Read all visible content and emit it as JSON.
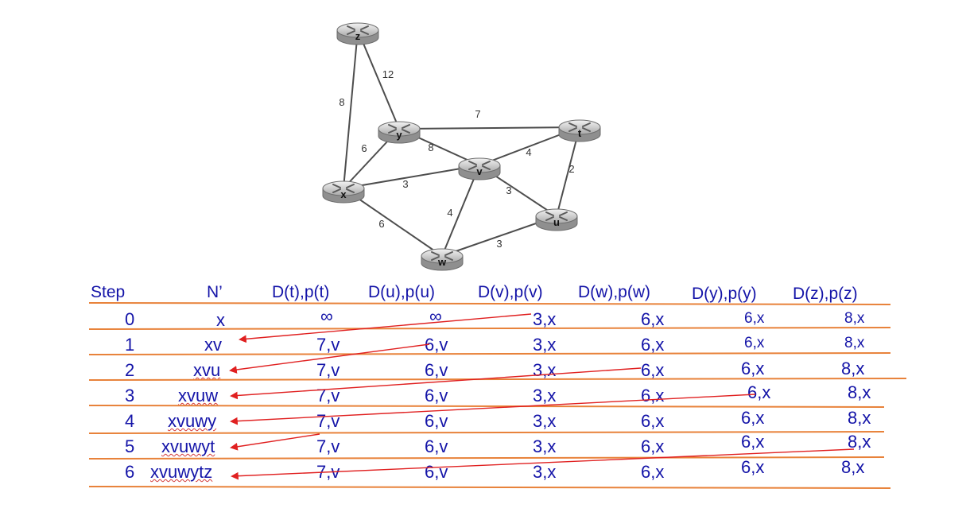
{
  "graph": {
    "nodes": [
      {
        "id": "z",
        "label": "z"
      },
      {
        "id": "y",
        "label": "y"
      },
      {
        "id": "t",
        "label": "t"
      },
      {
        "id": "v",
        "label": "v"
      },
      {
        "id": "x",
        "label": "x"
      },
      {
        "id": "u",
        "label": "u"
      },
      {
        "id": "w",
        "label": "w"
      }
    ],
    "edges": [
      {
        "from": "z",
        "to": "y",
        "cost": "12"
      },
      {
        "from": "z",
        "to": "x",
        "cost": "8"
      },
      {
        "from": "y",
        "to": "t",
        "cost": "7"
      },
      {
        "from": "y",
        "to": "x",
        "cost": "6"
      },
      {
        "from": "y",
        "to": "v",
        "cost": "8"
      },
      {
        "from": "t",
        "to": "v",
        "cost": "4"
      },
      {
        "from": "t",
        "to": "u",
        "cost": "2"
      },
      {
        "from": "x",
        "to": "v",
        "cost": "3"
      },
      {
        "from": "x",
        "to": "w",
        "cost": "6"
      },
      {
        "from": "v",
        "to": "w",
        "cost": "4"
      },
      {
        "from": "v",
        "to": "u",
        "cost": "3"
      },
      {
        "from": "w",
        "to": "u",
        "cost": "3"
      }
    ]
  },
  "table": {
    "headers": [
      "Step",
      "N’",
      "D(t),p(t)",
      "D(u),p(u)",
      "D(v),p(v)",
      "D(w),p(w)",
      "D(y),p(y)",
      "D(z),p(z)"
    ],
    "rows": [
      {
        "step": "0",
        "n": "x",
        "t": "∞",
        "u": "∞",
        "v": "3,x",
        "w": "6,x",
        "y": "6,x",
        "z": "8,x"
      },
      {
        "step": "1",
        "n": "xv",
        "t": "7,v",
        "u": "6,v",
        "v": "3,x",
        "w": "6,x",
        "y": "6,x",
        "z": "8,x"
      },
      {
        "step": "2",
        "n": "xvu",
        "t": "7,v",
        "u": "6,v",
        "v": "3,x",
        "w": "6,x",
        "y": "6,x",
        "z": "8,x"
      },
      {
        "step": "3",
        "n": "xvuw",
        "t": "7,v",
        "u": "6,v",
        "v": "3,x",
        "w": "6,x",
        "y": "6,x",
        "z": "8,x"
      },
      {
        "step": "4",
        "n": "xvuwy",
        "t": "7,v",
        "u": "6,v",
        "v": "3,x",
        "w": "6,x",
        "y": "6,x",
        "z": "8,x"
      },
      {
        "step": "5",
        "n": "xvuwyt",
        "t": "7,v",
        "u": "6,v",
        "v": "3,x",
        "w": "6,x",
        "y": "6,x",
        "z": "8,x"
      },
      {
        "step": "6",
        "n": "xvuwytz",
        "t": "7,v",
        "u": "6,v",
        "v": "3,x",
        "w": "6,x",
        "y": "6,x",
        "z": "8,x"
      }
    ]
  },
  "colors": {
    "table_text": "#1414a8",
    "row_lines": "#e8823a",
    "arrows": "#e02020",
    "edges": "#4d4d4d"
  }
}
